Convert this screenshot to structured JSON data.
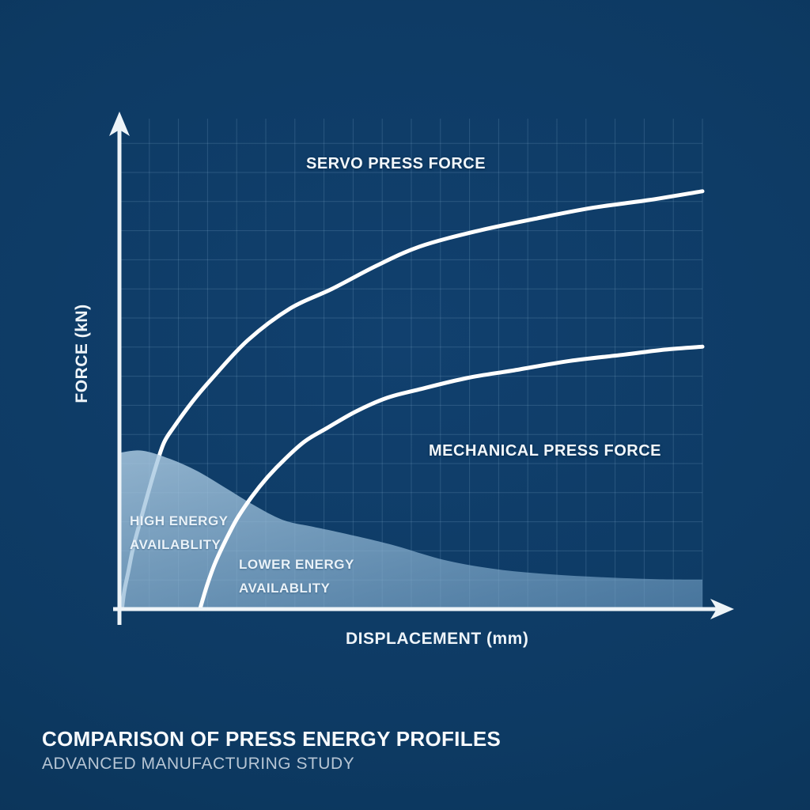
{
  "title_block": {
    "title": "COMPARISON OF PRESS ENERGY PROFILES",
    "subtitle": "ADVANCED MANUFACTURING STUDY"
  },
  "colors": {
    "background": "#0e3a64",
    "grid": "#8db4d8",
    "axis": "#eef4f8",
    "curve": "#ffffff",
    "energy_area_top": "#aecde4",
    "energy_area_bottom": "#6e9cc2",
    "title": "#f7fafd",
    "subtitle": "#b6c5d4"
  },
  "chart_data": {
    "type": "line",
    "title": "COMPARISON OF PRESS ENERGY PROFILES",
    "subtitle": "ADVANCED MANUFACTURING STUDY",
    "xlabel": "DISPLACEMENT (mm)",
    "ylabel": "FORCE (kN)",
    "x_ticks": [],
    "y_ticks": [],
    "xlim": [
      0,
      100
    ],
    "ylim": [
      0,
      100
    ],
    "grid": true,
    "legend_position": "none (inline annotations)",
    "value_encoding": "normalized 0-100; source axes are unlabeled conceptual axes",
    "series": [
      {
        "name": "SERVO PRESS FORCE",
        "type": "line",
        "color": "#ffffff",
        "points": [
          [
            0.3,
            0
          ],
          [
            0.7,
            3.7
          ],
          [
            1.4,
            7.7
          ],
          [
            2.2,
            12.4
          ],
          [
            3.4,
            17.7
          ],
          [
            4.8,
            23.7
          ],
          [
            6.1,
            29.0
          ],
          [
            7.5,
            33.9
          ],
          [
            9.2,
            37.1
          ],
          [
            12.4,
            42.3
          ],
          [
            15.6,
            46.8
          ],
          [
            21.9,
            54.8
          ],
          [
            29.2,
            61.3
          ],
          [
            36.4,
            65.3
          ],
          [
            44.0,
            70.0
          ],
          [
            51.4,
            73.9
          ],
          [
            61.0,
            77.0
          ],
          [
            71.7,
            79.7
          ],
          [
            81.0,
            81.8
          ],
          [
            90.8,
            83.4
          ],
          [
            100,
            85.2
          ]
        ]
      },
      {
        "name": "MECHANICAL PRESS FORCE",
        "type": "line",
        "color": "#ffffff",
        "points": [
          [
            13.7,
            0
          ],
          [
            14.9,
            4.8
          ],
          [
            16.3,
            9.4
          ],
          [
            18.1,
            14.0
          ],
          [
            20.1,
            18.5
          ],
          [
            22.6,
            22.9
          ],
          [
            25.3,
            26.9
          ],
          [
            28.3,
            30.6
          ],
          [
            31.7,
            34.2
          ],
          [
            35.5,
            36.9
          ],
          [
            40.5,
            40.3
          ],
          [
            45.9,
            43.1
          ],
          [
            51.4,
            44.8
          ],
          [
            59.5,
            47.1
          ],
          [
            67.7,
            48.7
          ],
          [
            77.2,
            50.6
          ],
          [
            86.7,
            51.9
          ],
          [
            93.5,
            52.9
          ],
          [
            100,
            53.5
          ]
        ]
      },
      {
        "name": "ENERGY AVAILABILITY REGION",
        "type": "area",
        "color": "#8fb6d4",
        "baseline": 0,
        "points": [
          [
            0,
            31.9
          ],
          [
            3.8,
            32.3
          ],
          [
            8.6,
            30.6
          ],
          [
            13.3,
            28.1
          ],
          [
            18.1,
            24.7
          ],
          [
            22.8,
            21.3
          ],
          [
            27.9,
            18.2
          ],
          [
            33.0,
            16.8
          ],
          [
            37.8,
            15.6
          ],
          [
            46.7,
            13.1
          ],
          [
            55.7,
            10.0
          ],
          [
            64.8,
            8.1
          ],
          [
            73.8,
            7.1
          ],
          [
            82.7,
            6.5
          ],
          [
            92.1,
            6.1
          ],
          [
            100,
            6.0
          ]
        ]
      }
    ],
    "annotations": [
      {
        "id": "servo-label",
        "text": "SERVO PRESS FORCE"
      },
      {
        "id": "mechanical-label",
        "text": "MECHANICAL PRESS FORCE"
      },
      {
        "id": "high-energy-label",
        "lines": [
          "HIGH ENERGY",
          "AVAILABLITY"
        ]
      },
      {
        "id": "lower-energy-label",
        "lines": [
          "LOWER ENERGY",
          "AVAILABLITY"
        ]
      }
    ]
  }
}
